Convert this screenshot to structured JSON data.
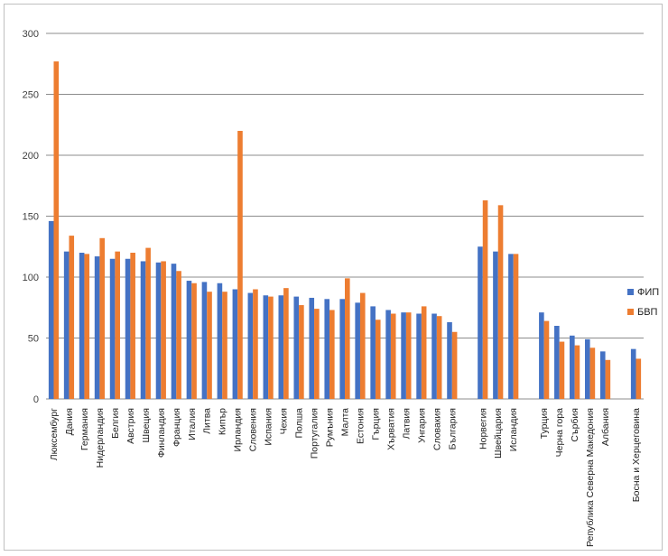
{
  "chart_data": {
    "type": "bar",
    "title": "",
    "xlabel": "",
    "ylabel": "",
    "ylim": [
      0,
      300
    ],
    "yticks": [
      0,
      50,
      100,
      150,
      200,
      250,
      300
    ],
    "grid": true,
    "legend_position": "right",
    "slots": [
      "Люксембург",
      "Дания",
      "Германия",
      "Нидерландия",
      "Белгия",
      "Австрия",
      "Швеция",
      "Финландия",
      "Франция",
      "Италия",
      "Литва",
      "Кипър",
      "Ирландия",
      "Словения",
      "Испания",
      "Чехия",
      "Полша",
      "Португалия",
      "Румъния",
      "Малта",
      "Естония",
      "Гърция",
      "Хърватия",
      "Латвия",
      "Унгария",
      "Словакия",
      "България",
      "",
      "Норвегия",
      "Швейцария",
      "Исландия",
      "",
      "Турция",
      "Черна гора",
      "Сърбия",
      "Република Северна Македония",
      "Албания",
      "",
      "Босна и Херцеговина"
    ],
    "series": [
      {
        "name": "ФИП",
        "color": "#4472C4",
        "values": [
          146,
          121,
          120,
          117,
          115,
          115,
          113,
          112,
          111,
          97,
          96,
          95,
          90,
          87,
          85,
          85,
          84,
          83,
          82,
          82,
          79,
          76,
          73,
          71,
          70,
          70,
          63,
          null,
          125,
          121,
          119,
          null,
          71,
          60,
          52,
          49,
          39,
          null,
          41
        ]
      },
      {
        "name": "БВП",
        "color": "#ED7D31",
        "values": [
          277,
          134,
          119,
          132,
          121,
          120,
          124,
          113,
          105,
          95,
          88,
          88,
          220,
          90,
          84,
          91,
          77,
          74,
          73,
          99,
          87,
          65,
          70,
          71,
          76,
          68,
          55,
          null,
          163,
          159,
          119,
          null,
          64,
          47,
          44,
          42,
          32,
          null,
          33
        ]
      }
    ]
  }
}
